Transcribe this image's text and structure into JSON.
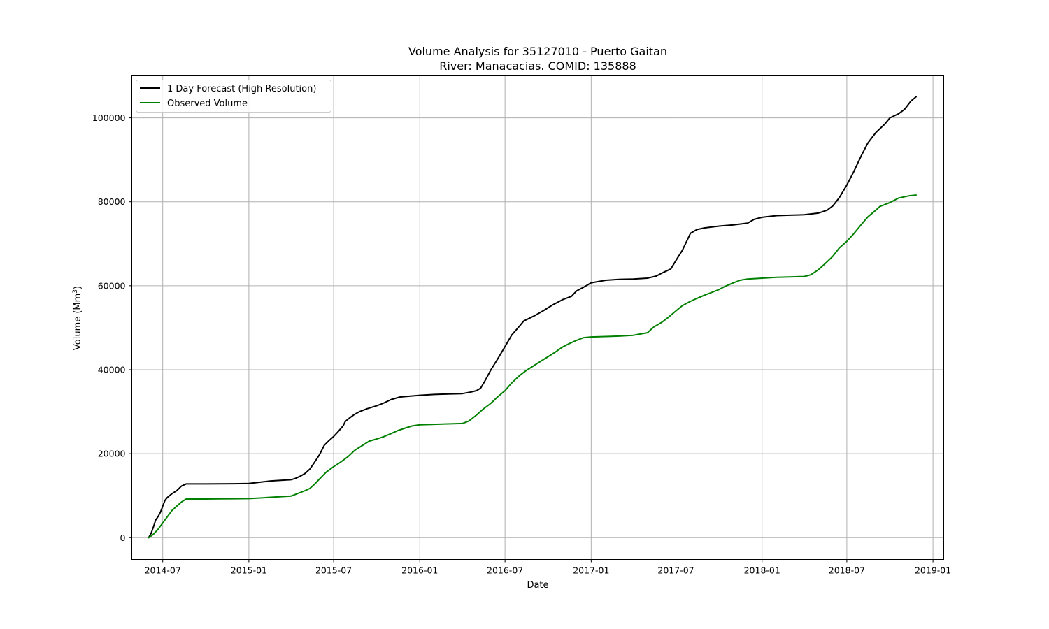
{
  "chart_data": {
    "type": "line",
    "title_line1": "Volume Analysis for 35127010 - Puerto Gaitan",
    "title_line2": "River: Manacacias. COMID: 135888",
    "xlabel": "Date",
    "ylabel": "Volume (Mm",
    "ylabel_superscript": "3",
    "ylabel_suffix": ")",
    "x_type": "date",
    "xlim": [
      "2014-04-26",
      "2019-01-24"
    ],
    "ylim": [
      -5200,
      110000
    ],
    "x_ticks": [
      {
        "date": "2014-07-01",
        "label": "2014-07"
      },
      {
        "date": "2015-01-01",
        "label": "2015-01"
      },
      {
        "date": "2015-07-01",
        "label": "2015-07"
      },
      {
        "date": "2016-01-01",
        "label": "2016-01"
      },
      {
        "date": "2016-07-01",
        "label": "2016-07"
      },
      {
        "date": "2017-01-01",
        "label": "2017-01"
      },
      {
        "date": "2017-07-01",
        "label": "2017-07"
      },
      {
        "date": "2018-01-01",
        "label": "2018-01"
      },
      {
        "date": "2018-07-01",
        "label": "2018-07"
      },
      {
        "date": "2019-01-01",
        "label": "2019-01"
      }
    ],
    "y_ticks": [
      {
        "value": 0,
        "label": "0"
      },
      {
        "value": 20000,
        "label": "20000"
      },
      {
        "value": 40000,
        "label": "40000"
      },
      {
        "value": 60000,
        "label": "60000"
      },
      {
        "value": 80000,
        "label": "80000"
      },
      {
        "value": 100000,
        "label": "100000"
      }
    ],
    "grid": true,
    "legend_position": "top-left",
    "series": [
      {
        "name": "1 Day Forecast (High Resolution)",
        "color": "#000000",
        "points": [
          [
            "2014-06-01",
            0
          ],
          [
            "2014-06-06",
            1000
          ],
          [
            "2014-06-11",
            2500
          ],
          [
            "2014-06-16",
            4200
          ],
          [
            "2014-06-21",
            5000
          ],
          [
            "2014-06-26",
            6000
          ],
          [
            "2014-07-01",
            7500
          ],
          [
            "2014-07-06",
            8900
          ],
          [
            "2014-07-11",
            9600
          ],
          [
            "2014-07-21",
            10500
          ],
          [
            "2014-07-31",
            11200
          ],
          [
            "2014-08-10",
            12300
          ],
          [
            "2014-08-20",
            12800
          ],
          [
            "2014-09-01",
            12800
          ],
          [
            "2014-10-01",
            12800
          ],
          [
            "2014-11-01",
            12830
          ],
          [
            "2014-12-01",
            12850
          ],
          [
            "2015-01-01",
            12900
          ],
          [
            "2015-02-01",
            13300
          ],
          [
            "2015-02-15",
            13500
          ],
          [
            "2015-03-01",
            13600
          ],
          [
            "2015-04-01",
            13800
          ],
          [
            "2015-04-10",
            14100
          ],
          [
            "2015-04-20",
            14600
          ],
          [
            "2015-05-01",
            15300
          ],
          [
            "2015-05-11",
            16300
          ],
          [
            "2015-05-21",
            17900
          ],
          [
            "2015-06-01",
            19800
          ],
          [
            "2015-06-11",
            22000
          ],
          [
            "2015-06-21",
            23100
          ],
          [
            "2015-07-01",
            24100
          ],
          [
            "2015-07-11",
            25300
          ],
          [
            "2015-07-21",
            26600
          ],
          [
            "2015-07-26",
            27700
          ],
          [
            "2015-08-05",
            28600
          ],
          [
            "2015-08-15",
            29400
          ],
          [
            "2015-08-25",
            30000
          ],
          [
            "2015-09-10",
            30700
          ],
          [
            "2015-10-01",
            31400
          ],
          [
            "2015-10-15",
            32000
          ],
          [
            "2015-11-01",
            32900
          ],
          [
            "2015-11-20",
            33500
          ],
          [
            "2016-01-01",
            33900
          ],
          [
            "2016-02-01",
            34100
          ],
          [
            "2016-03-01",
            34200
          ],
          [
            "2016-04-01",
            34300
          ],
          [
            "2016-04-20",
            34700
          ],
          [
            "2016-05-01",
            35000
          ],
          [
            "2016-05-10",
            35600
          ],
          [
            "2016-05-20",
            37500
          ],
          [
            "2016-06-01",
            40000
          ],
          [
            "2016-06-15",
            42500
          ],
          [
            "2016-07-01",
            45500
          ],
          [
            "2016-07-15",
            48200
          ],
          [
            "2016-08-01",
            50400
          ],
          [
            "2016-08-10",
            51600
          ],
          [
            "2016-09-01",
            52800
          ],
          [
            "2016-09-20",
            54000
          ],
          [
            "2016-10-10",
            55400
          ],
          [
            "2016-11-01",
            56700
          ],
          [
            "2016-11-20",
            57500
          ],
          [
            "2016-12-01",
            58800
          ],
          [
            "2016-12-15",
            59600
          ],
          [
            "2017-01-01",
            60700
          ],
          [
            "2017-02-01",
            61300
          ],
          [
            "2017-03-01",
            61500
          ],
          [
            "2017-04-01",
            61600
          ],
          [
            "2017-05-01",
            61800
          ],
          [
            "2017-05-20",
            62300
          ],
          [
            "2017-06-01",
            63000
          ],
          [
            "2017-06-20",
            64000
          ],
          [
            "2017-07-01",
            66000
          ],
          [
            "2017-07-15",
            68500
          ],
          [
            "2017-08-01",
            72500
          ],
          [
            "2017-08-15",
            73400
          ],
          [
            "2017-09-01",
            73800
          ],
          [
            "2017-10-01",
            74200
          ],
          [
            "2017-11-01",
            74500
          ],
          [
            "2017-12-01",
            74900
          ],
          [
            "2017-12-15",
            75800
          ],
          [
            "2018-01-01",
            76300
          ],
          [
            "2018-02-01",
            76700
          ],
          [
            "2018-03-01",
            76800
          ],
          [
            "2018-04-01",
            76900
          ],
          [
            "2018-05-01",
            77300
          ],
          [
            "2018-05-20",
            78000
          ],
          [
            "2018-06-01",
            79000
          ],
          [
            "2018-06-15",
            81000
          ],
          [
            "2018-07-01",
            84000
          ],
          [
            "2018-07-15",
            87000
          ],
          [
            "2018-08-01",
            91000
          ],
          [
            "2018-08-15",
            94000
          ],
          [
            "2018-09-01",
            96500
          ],
          [
            "2018-09-20",
            98500
          ],
          [
            "2018-10-01",
            100000
          ],
          [
            "2018-10-20",
            101000
          ],
          [
            "2018-11-01",
            102000
          ],
          [
            "2018-11-15",
            104000
          ],
          [
            "2018-11-26",
            105000
          ]
        ]
      },
      {
        "name": "Observed Volume",
        "color": "#008000",
        "points": [
          [
            "2014-06-01",
            0
          ],
          [
            "2014-06-11",
            800
          ],
          [
            "2014-06-21",
            2000
          ],
          [
            "2014-07-01",
            3500
          ],
          [
            "2014-07-11",
            5000
          ],
          [
            "2014-07-21",
            6500
          ],
          [
            "2014-08-01",
            7600
          ],
          [
            "2014-08-10",
            8500
          ],
          [
            "2014-08-20",
            9200
          ],
          [
            "2014-09-01",
            9200
          ],
          [
            "2014-10-01",
            9200
          ],
          [
            "2014-11-01",
            9250
          ],
          [
            "2014-12-01",
            9260
          ],
          [
            "2015-01-01",
            9300
          ],
          [
            "2015-02-01",
            9500
          ],
          [
            "2015-03-01",
            9700
          ],
          [
            "2015-04-01",
            9900
          ],
          [
            "2015-04-15",
            10500
          ],
          [
            "2015-05-01",
            11200
          ],
          [
            "2015-05-11",
            11700
          ],
          [
            "2015-05-21",
            12700
          ],
          [
            "2015-06-01",
            14000
          ],
          [
            "2015-06-15",
            15600
          ],
          [
            "2015-07-01",
            16900
          ],
          [
            "2015-07-15",
            17900
          ],
          [
            "2015-08-01",
            19300
          ],
          [
            "2015-08-15",
            20800
          ],
          [
            "2015-09-01",
            22000
          ],
          [
            "2015-09-15",
            23000
          ],
          [
            "2015-10-01",
            23500
          ],
          [
            "2015-10-15",
            24000
          ],
          [
            "2015-11-01",
            24800
          ],
          [
            "2015-11-15",
            25500
          ],
          [
            "2015-12-01",
            26100
          ],
          [
            "2015-12-15",
            26600
          ],
          [
            "2016-01-01",
            26900
          ],
          [
            "2016-02-01",
            27000
          ],
          [
            "2016-03-01",
            27100
          ],
          [
            "2016-04-01",
            27200
          ],
          [
            "2016-04-15",
            27800
          ],
          [
            "2016-05-01",
            29200
          ],
          [
            "2016-05-15",
            30600
          ],
          [
            "2016-06-01",
            32000
          ],
          [
            "2016-06-15",
            33500
          ],
          [
            "2016-07-01",
            35000
          ],
          [
            "2016-07-15",
            36800
          ],
          [
            "2016-08-01",
            38600
          ],
          [
            "2016-08-15",
            39800
          ],
          [
            "2016-09-01",
            41000
          ],
          [
            "2016-09-15",
            42000
          ],
          [
            "2016-10-01",
            43100
          ],
          [
            "2016-10-15",
            44100
          ],
          [
            "2016-11-01",
            45400
          ],
          [
            "2016-11-15",
            46200
          ],
          [
            "2016-12-01",
            47000
          ],
          [
            "2016-12-15",
            47600
          ],
          [
            "2017-01-01",
            47800
          ],
          [
            "2017-02-01",
            47900
          ],
          [
            "2017-03-01",
            48000
          ],
          [
            "2017-04-01",
            48200
          ],
          [
            "2017-05-01",
            48800
          ],
          [
            "2017-05-15",
            50200
          ],
          [
            "2017-06-01",
            51300
          ],
          [
            "2017-06-15",
            52500
          ],
          [
            "2017-07-01",
            54000
          ],
          [
            "2017-07-15",
            55300
          ],
          [
            "2017-08-01",
            56300
          ],
          [
            "2017-08-15",
            57000
          ],
          [
            "2017-09-01",
            57800
          ],
          [
            "2017-09-15",
            58400
          ],
          [
            "2017-10-01",
            59100
          ],
          [
            "2017-10-15",
            59900
          ],
          [
            "2017-11-01",
            60700
          ],
          [
            "2017-11-15",
            61300
          ],
          [
            "2017-12-01",
            61600
          ],
          [
            "2018-01-01",
            61800
          ],
          [
            "2018-02-01",
            62000
          ],
          [
            "2018-03-01",
            62100
          ],
          [
            "2018-04-01",
            62200
          ],
          [
            "2018-04-15",
            62600
          ],
          [
            "2018-05-01",
            63800
          ],
          [
            "2018-05-15",
            65200
          ],
          [
            "2018-06-01",
            67000
          ],
          [
            "2018-06-15",
            69000
          ],
          [
            "2018-07-01",
            70600
          ],
          [
            "2018-07-15",
            72300
          ],
          [
            "2018-08-01",
            74600
          ],
          [
            "2018-08-15",
            76400
          ],
          [
            "2018-09-01",
            78000
          ],
          [
            "2018-09-10",
            78900
          ],
          [
            "2018-10-01",
            79800
          ],
          [
            "2018-10-20",
            80900
          ],
          [
            "2018-11-10",
            81400
          ],
          [
            "2018-11-26",
            81600
          ]
        ]
      }
    ]
  }
}
